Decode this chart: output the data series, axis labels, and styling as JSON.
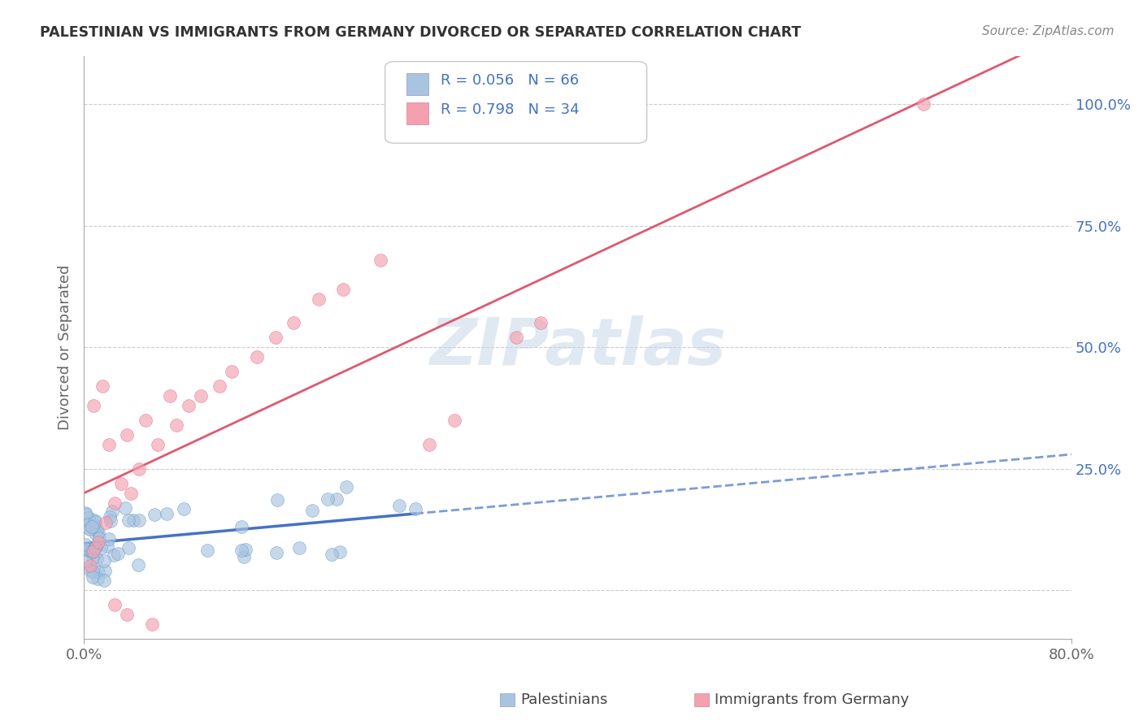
{
  "title": "PALESTINIAN VS IMMIGRANTS FROM GERMANY DIVORCED OR SEPARATED CORRELATION CHART",
  "source": "Source: ZipAtlas.com",
  "ylabel": "Divorced or Separated",
  "xlim": [
    0.0,
    0.8
  ],
  "ylim": [
    -0.1,
    1.1
  ],
  "blue_color": "#a8c4e0",
  "blue_edge_color": "#6699cc",
  "pink_color": "#f4a0b0",
  "pink_edge_color": "#e07090",
  "blue_line_color": "#4472c4",
  "pink_line_color": "#e05870",
  "legend_text_color": "#4472c4",
  "grid_color": "#cccccc",
  "watermark_color": "#c8d8e8",
  "tick_label_color_y": "#4472c4",
  "tick_label_color_x": "#666666",
  "spine_color": "#aaaaaa",
  "title_color": "#333333",
  "source_color": "#888888",
  "ytick_positions": [
    0.0,
    0.25,
    0.5,
    0.75,
    1.0
  ],
  "ytick_labels": [
    "",
    "25.0%",
    "50.0%",
    "75.0%",
    "100.0%"
  ],
  "xtick_positions": [
    0.0,
    0.8
  ],
  "xtick_labels": [
    "0.0%",
    "80.0%"
  ],
  "watermark_text": "ZIPatlas",
  "legend_line1": "R = 0.056   N = 66",
  "legend_line2": "R = 0.798   N = 34",
  "bottom_legend_1": "Palestinians",
  "bottom_legend_2": "Immigrants from Germany"
}
